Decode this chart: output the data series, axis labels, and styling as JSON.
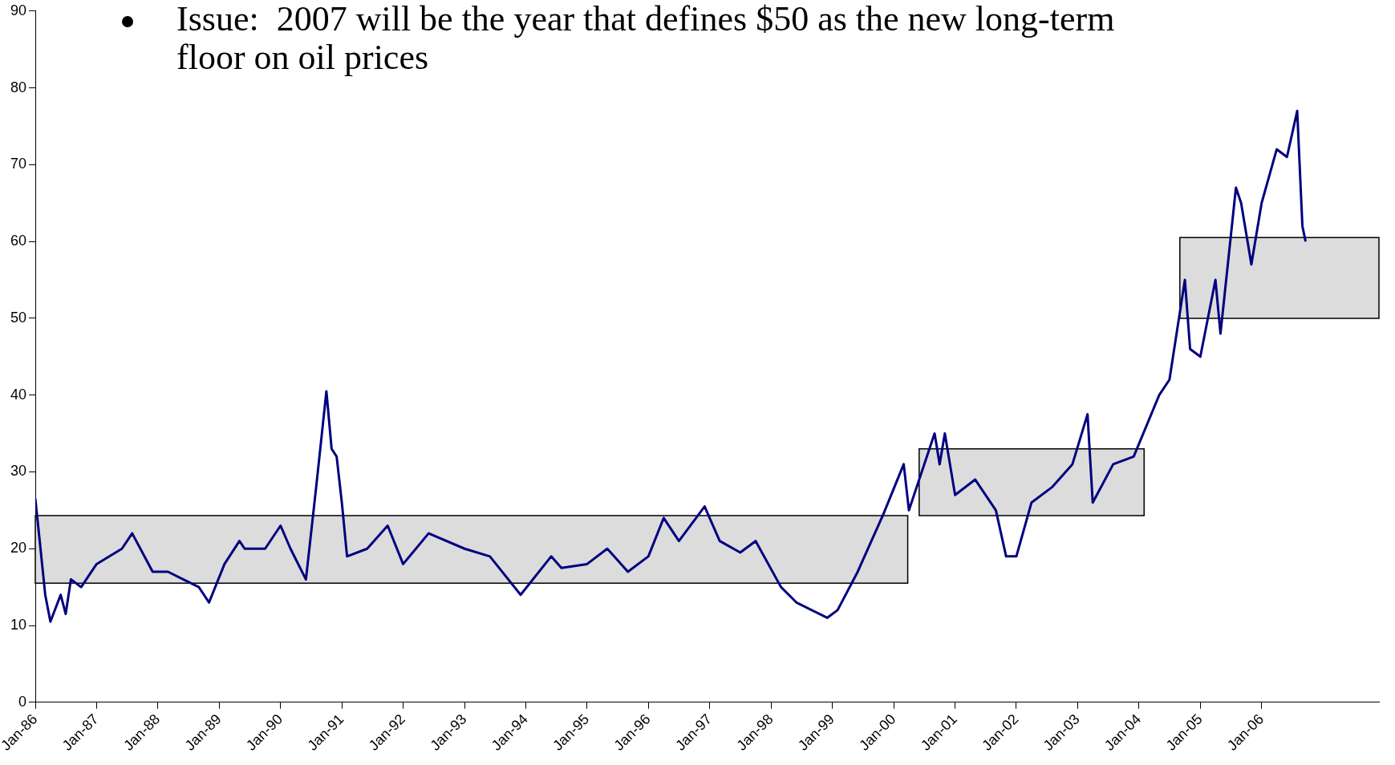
{
  "chart_data": {
    "type": "line",
    "title": "Issue:  2007 will be the year that defines $50 as the new long-term floor on oil prices",
    "xlim": [
      "1986-01",
      "2007-12"
    ],
    "xticks": [
      {
        "value": "1986-01",
        "label": "Jan-86"
      },
      {
        "value": "1987-01",
        "label": "Jan-87"
      },
      {
        "value": "1988-01",
        "label": "Jan-88"
      },
      {
        "value": "1989-01",
        "label": "Jan-89"
      },
      {
        "value": "1990-01",
        "label": "Jan-90"
      },
      {
        "value": "1991-01",
        "label": "Jan-91"
      },
      {
        "value": "1992-01",
        "label": "Jan-92"
      },
      {
        "value": "1993-01",
        "label": "Jan-93"
      },
      {
        "value": "1994-01",
        "label": "Jan-94"
      },
      {
        "value": "1995-01",
        "label": "Jan-95"
      },
      {
        "value": "1996-01",
        "label": "Jan-96"
      },
      {
        "value": "1997-01",
        "label": "Jan-97"
      },
      {
        "value": "1998-01",
        "label": "Jan-98"
      },
      {
        "value": "1999-01",
        "label": "Jan-99"
      },
      {
        "value": "2000-01",
        "label": "Jan-00"
      },
      {
        "value": "2001-01",
        "label": "Jan-01"
      },
      {
        "value": "2002-01",
        "label": "Jan-02"
      },
      {
        "value": "2003-01",
        "label": "Jan-03"
      },
      {
        "value": "2004-01",
        "label": "Jan-04"
      },
      {
        "value": "2005-01",
        "label": "Jan-05"
      },
      {
        "value": "2006-01",
        "label": "Jan-06"
      }
    ],
    "ylim": [
      0,
      90
    ],
    "yticks": [
      0,
      10,
      20,
      30,
      40,
      50,
      60,
      70,
      80,
      90
    ],
    "grid": false,
    "legend": false,
    "marker": "none",
    "line_style": "solid",
    "series": [
      {
        "color": "#000080",
        "x": [
          "1986-01",
          "1986-02",
          "1986-03",
          "1986-04",
          "1986-06",
          "1986-07",
          "1986-08",
          "1986-10",
          "1987-01",
          "1987-06",
          "1987-08",
          "1987-12",
          "1988-03",
          "1988-06",
          "1988-09",
          "1988-11",
          "1989-02",
          "1989-05",
          "1989-06",
          "1989-10",
          "1990-01",
          "1990-03",
          "1990-06",
          "1990-08",
          "1990-10",
          "1990-11",
          "1990-12",
          "1991-01",
          "1991-02",
          "1991-06",
          "1991-10",
          "1992-01",
          "1992-06",
          "1993-01",
          "1993-06",
          "1993-12",
          "1994-06",
          "1994-08",
          "1995-01",
          "1995-05",
          "1995-09",
          "1996-01",
          "1996-04",
          "1996-07",
          "1996-12",
          "1997-03",
          "1997-07",
          "1997-10",
          "1998-03",
          "1998-06",
          "1998-12",
          "1999-02",
          "1999-06",
          "1999-11",
          "2000-03",
          "2000-04",
          "2000-09",
          "2000-10",
          "2000-11",
          "2001-01",
          "2001-05",
          "2001-09",
          "2001-11",
          "2002-01",
          "2002-04",
          "2002-08",
          "2002-12",
          "2003-03",
          "2003-04",
          "2003-08",
          "2003-12",
          "2004-05",
          "2004-07",
          "2004-10",
          "2004-11",
          "2005-01",
          "2005-04",
          "2005-05",
          "2005-08",
          "2005-09",
          "2005-11",
          "2006-01",
          "2006-04",
          "2006-06",
          "2006-08",
          "2006-09",
          "2006-09-20"
        ],
        "values": [
          26.5,
          20,
          14,
          10.5,
          14,
          11.5,
          16,
          15,
          18,
          20,
          22,
          17,
          17,
          16,
          15,
          13,
          18,
          21,
          20,
          20,
          23,
          20,
          16,
          28,
          40.5,
          33,
          32,
          26,
          19,
          20,
          23,
          18,
          22,
          20,
          19,
          14,
          19,
          17.5,
          18,
          20,
          17,
          19,
          24,
          21,
          25.5,
          21,
          19.5,
          21,
          15,
          13,
          11,
          12,
          17,
          24.5,
          31,
          25,
          35,
          31,
          35,
          27,
          29,
          25,
          19,
          19,
          26,
          28,
          31,
          37.5,
          26,
          31,
          32,
          40,
          42,
          55,
          46,
          45,
          55,
          48,
          67,
          65,
          57,
          65,
          72,
          71,
          77,
          62,
          60
        ]
      },
      {
        "type": "area",
        "color": "#dcdcdc",
        "x": [
          "1986-01",
          "2000-03-25"
        ],
        "lower": [
          15.5,
          15.5
        ],
        "upper": [
          24.3,
          24.3
        ],
        "values": [
          null,
          null
        ]
      },
      {
        "type": "area",
        "color": "#dcdcdc",
        "x": [
          "2000-06",
          "2004-02"
        ],
        "lower": [
          24.3,
          24.3
        ],
        "upper": [
          33,
          33
        ],
        "values": [
          null,
          null
        ]
      },
      {
        "type": "area",
        "color": "#dcdcdc",
        "x": [
          "2004-09",
          "2007-12"
        ],
        "lower": [
          50,
          50
        ],
        "upper": [
          60.5,
          60.5
        ],
        "values": [
          null,
          null
        ]
      }
    ]
  }
}
